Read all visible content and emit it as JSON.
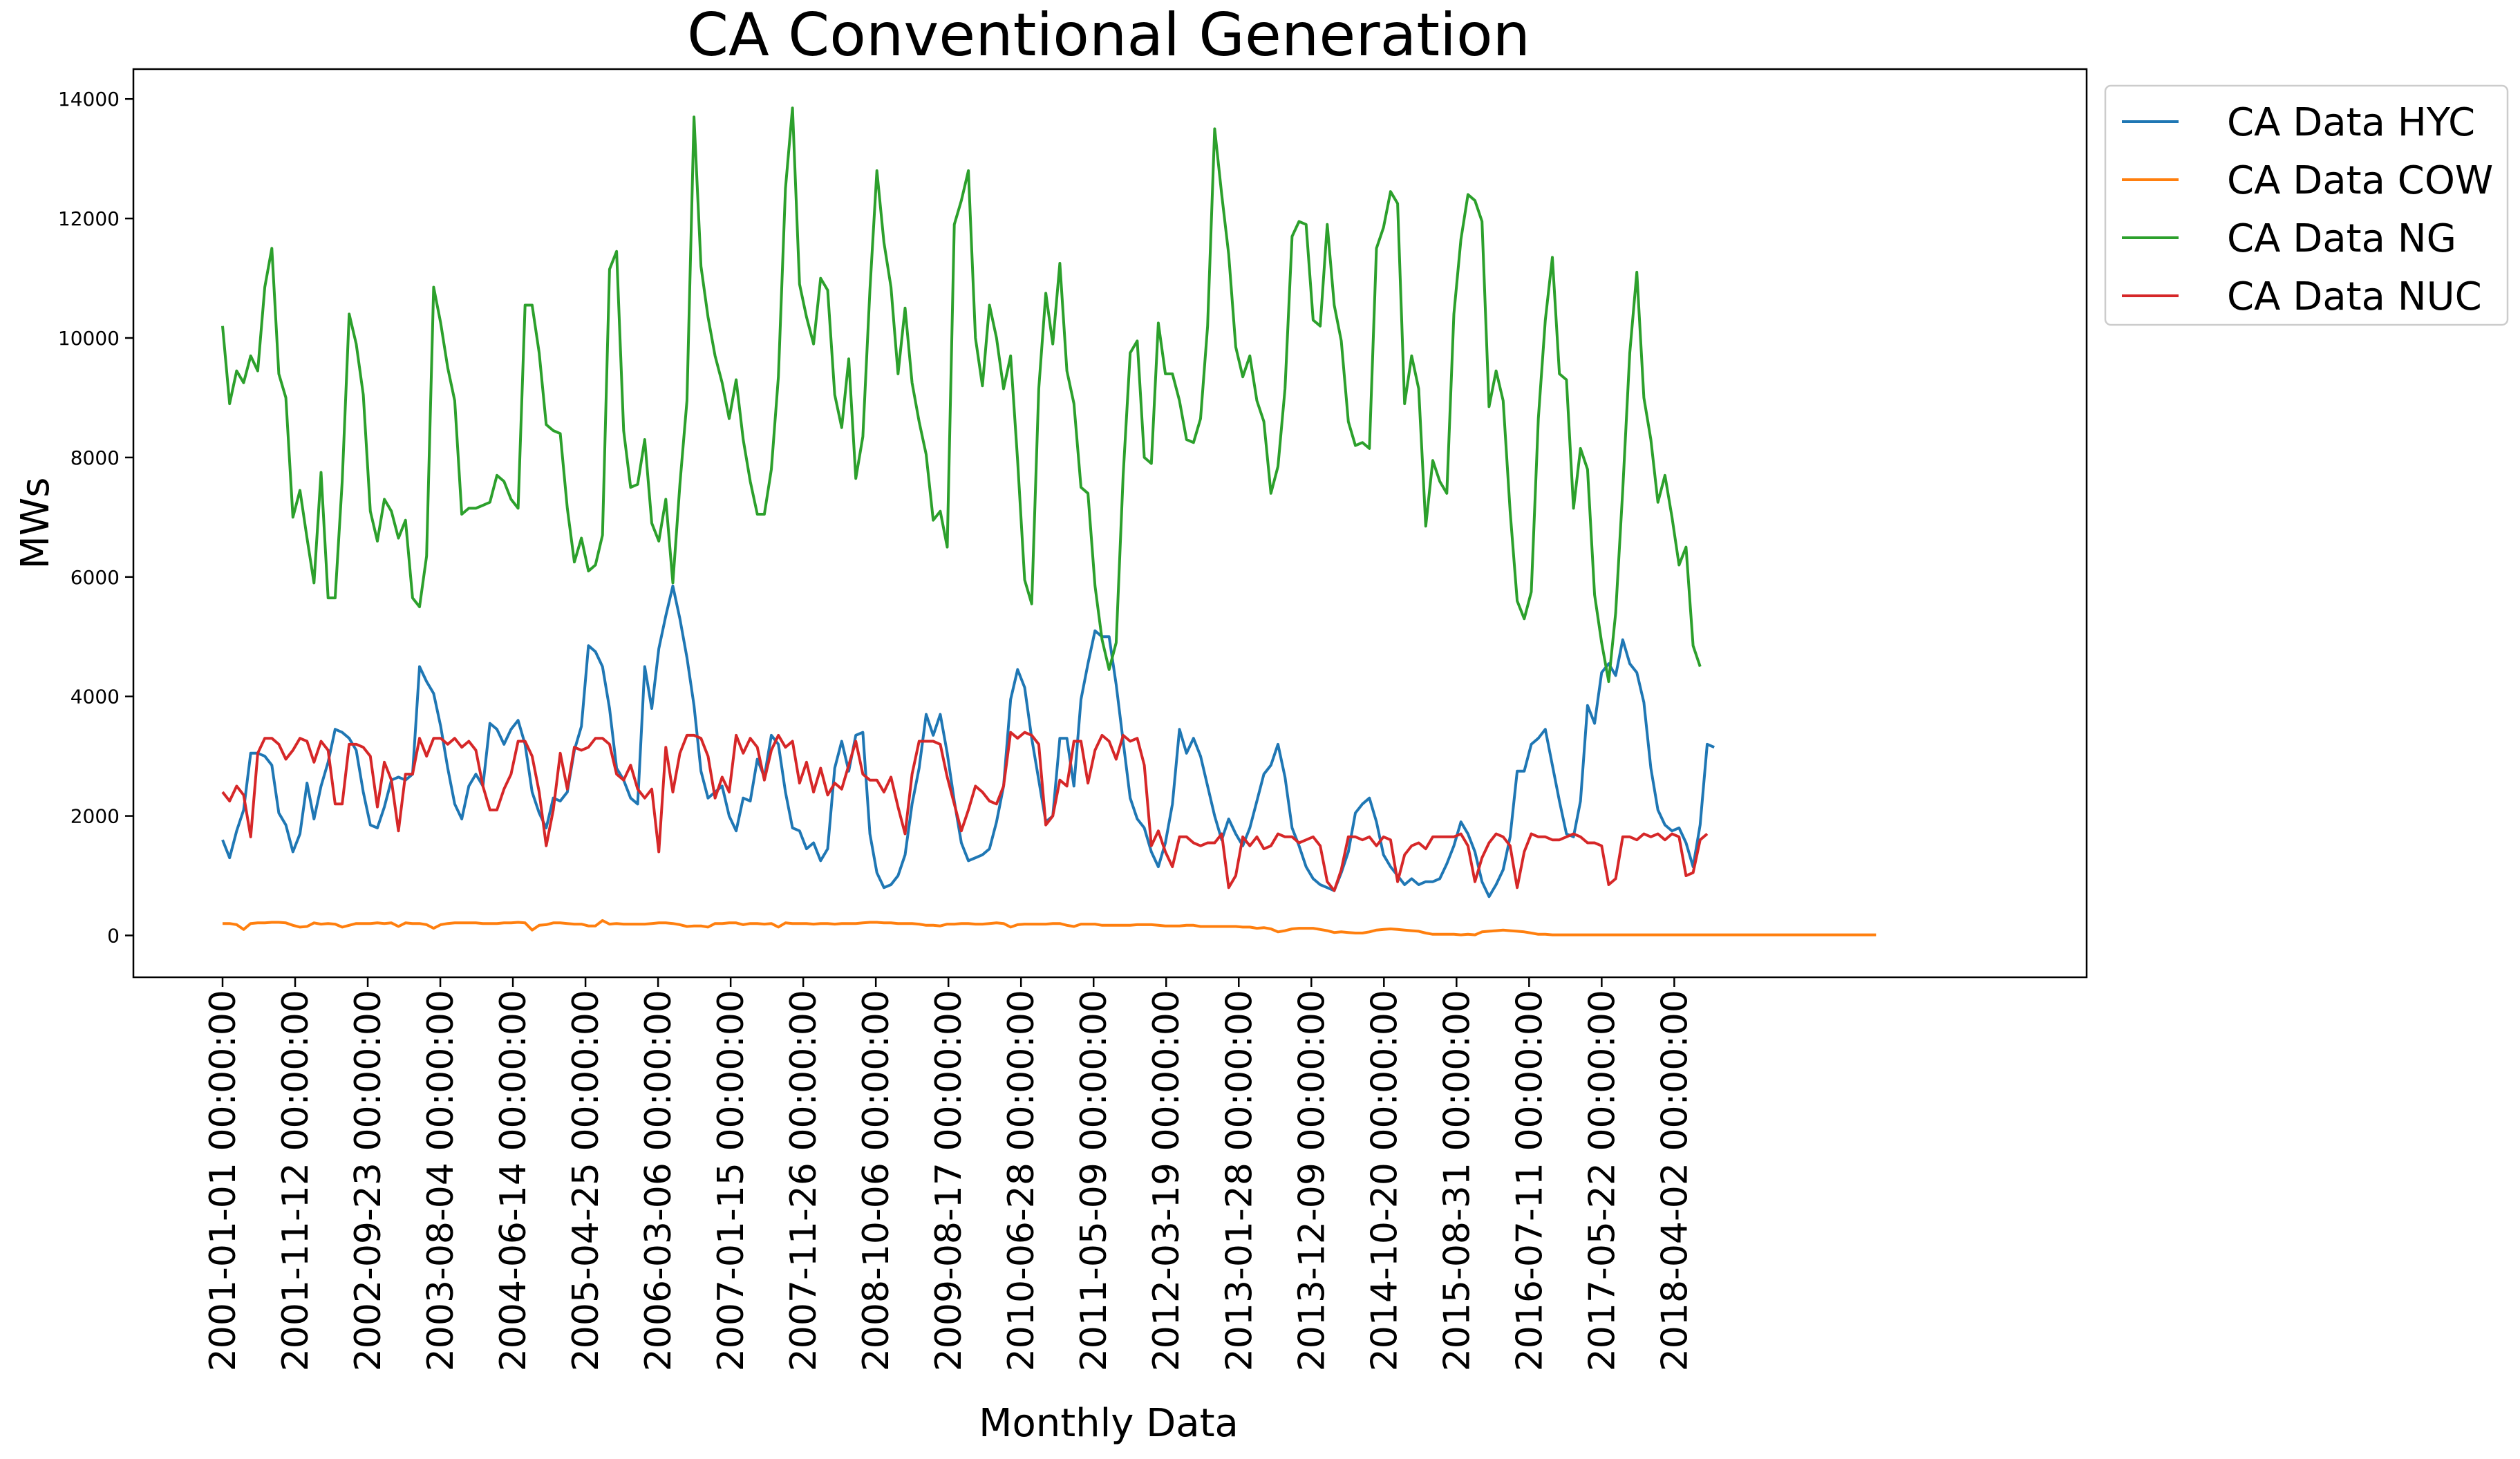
{
  "chart_data": {
    "type": "line",
    "title": "CA Conventional Generation",
    "xlabel": "Monthly Data",
    "ylabel": "MWs",
    "ylim": [
      -700,
      14500
    ],
    "yticks": [
      0,
      2000,
      4000,
      6000,
      8000,
      10000,
      12000,
      14000
    ],
    "x_start": "2001-01-01",
    "x_interval": "monthly",
    "x_tick_labels": [
      "2001-01-01 00:00:00",
      "2001-11-12 00:00:00",
      "2002-09-23 00:00:00",
      "2003-08-04 00:00:00",
      "2004-06-14 00:00:00",
      "2005-04-25 00:00:00",
      "2006-03-06 00:00:00",
      "2007-01-15 00:00:00",
      "2007-11-26 00:00:00",
      "2008-10-06 00:00:00",
      "2009-08-17 00:00:00",
      "2010-06-28 00:00:00",
      "2011-05-09 00:00:00",
      "2012-03-19 00:00:00",
      "2013-01-28 00:00:00",
      "2013-12-09 00:00:00",
      "2014-10-20 00:00:00",
      "2015-08-31 00:00:00",
      "2016-07-11 00:00:00",
      "2017-05-22 00:00:00",
      "2018-04-02 00:00:00"
    ],
    "legend_position": "outside-top-right",
    "grid": false,
    "series": [
      {
        "name": "CA Data HYC",
        "color": "#1f77b4",
        "values": [
          1600,
          1300,
          1750,
          2100,
          3050,
          3050,
          3000,
          2850,
          2050,
          1850,
          1400,
          1700,
          2550,
          1950,
          2500,
          2900,
          3450,
          3400,
          3300,
          3100,
          2400,
          1850,
          1800,
          2150,
          2600,
          2650,
          2600,
          2700,
          4500,
          4250,
          4050,
          3500,
          2800,
          2200,
          1950,
          2500,
          2700,
          2500,
          3550,
          3450,
          3200,
          3450,
          3600,
          3200,
          2400,
          2050,
          1800,
          2300,
          2250,
          2400,
          3100,
          3500,
          4850,
          4750,
          4500,
          3800,
          2800,
          2600,
          2300,
          2200,
          4500,
          3800,
          4800,
          5350,
          5850,
          5300,
          4650,
          3850,
          2750,
          2300,
          2400,
          2500,
          2000,
          1750,
          2300,
          2250,
          2950,
          2650,
          3350,
          3200,
          2400,
          1800,
          1750,
          1450,
          1550,
          1250,
          1450,
          2800,
          3250,
          2750,
          3350,
          3400,
          1700,
          1050,
          800,
          850,
          1000,
          1350,
          2200,
          2800,
          3700,
          3350,
          3700,
          3050,
          2250,
          1550,
          1250,
          1300,
          1350,
          1450,
          1900,
          2500,
          3950,
          4450,
          4150,
          3300,
          2600,
          1900,
          2000,
          3300,
          3300,
          2500,
          3950,
          4550,
          5100,
          5000,
          5000,
          4200,
          3250,
          2300,
          1950,
          1800,
          1400,
          1150,
          1550,
          2200,
          3450,
          3050,
          3300,
          3000,
          2500,
          2000,
          1600,
          1950,
          1700,
          1500,
          1800,
          2250,
          2700,
          2850,
          3200,
          2650,
          1800,
          1500,
          1150,
          950,
          850,
          800,
          750,
          1050,
          1400,
          2050,
          2200,
          2300,
          1900,
          1350,
          1150,
          1000,
          850,
          950,
          850,
          900,
          900,
          950,
          1200,
          1500,
          1900,
          1700,
          1400,
          900,
          650,
          850,
          1100,
          1650,
          2750,
          2750,
          3200,
          3300,
          3450,
          2850,
          2250,
          1700,
          1650,
          2250,
          3850,
          3550,
          4400,
          4550,
          4350,
          4950,
          4550,
          4400,
          3900,
          2800,
          2100,
          1850,
          1750,
          1800,
          1550,
          1150,
          1850,
          3200,
          3150
        ]
      },
      {
        "name": "CA Data COW",
        "color": "#ff7f0e",
        "values": [
          200,
          200,
          180,
          100,
          200,
          210,
          210,
          220,
          220,
          210,
          170,
          140,
          150,
          210,
          190,
          200,
          190,
          140,
          170,
          200,
          200,
          200,
          210,
          200,
          210,
          150,
          210,
          200,
          200,
          180,
          120,
          180,
          200,
          210,
          210,
          210,
          210,
          200,
          200,
          200,
          210,
          210,
          220,
          210,
          90,
          170,
          180,
          210,
          210,
          200,
          190,
          190,
          160,
          160,
          250,
          190,
          200,
          190,
          190,
          190,
          190,
          200,
          210,
          210,
          200,
          180,
          150,
          160,
          160,
          140,
          200,
          200,
          210,
          210,
          180,
          200,
          200,
          190,
          200,
          140,
          210,
          200,
          200,
          200,
          190,
          200,
          200,
          190,
          200,
          200,
          200,
          210,
          220,
          220,
          210,
          210,
          200,
          200,
          200,
          190,
          170,
          170,
          160,
          190,
          190,
          200,
          200,
          190,
          190,
          200,
          210,
          200,
          140,
          180,
          190,
          190,
          190,
          190,
          200,
          200,
          170,
          150,
          190,
          190,
          190,
          170,
          170,
          170,
          170,
          170,
          180,
          180,
          180,
          170,
          160,
          160,
          160,
          170,
          170,
          150,
          150,
          150,
          150,
          150,
          150,
          140,
          140,
          120,
          130,
          110,
          60,
          80,
          110,
          120,
          120,
          120,
          100,
          80,
          50,
          60,
          50,
          40,
          40,
          60,
          90,
          100,
          110,
          100,
          90,
          80,
          70,
          40,
          20,
          20,
          20,
          20,
          10,
          20,
          10,
          60,
          70,
          80,
          90,
          80,
          70,
          60,
          40,
          20,
          20,
          10,
          10,
          10,
          10,
          10,
          10,
          10,
          10,
          10,
          10,
          10,
          10,
          10,
          10,
          10,
          10,
          10,
          10,
          10,
          10,
          10,
          10,
          10,
          10,
          10,
          10,
          10,
          10,
          10,
          10,
          10,
          10,
          10,
          10,
          10,
          10,
          10,
          10,
          10,
          10,
          10,
          10,
          10,
          10,
          10,
          10,
          10
        ]
      },
      {
        "name": "CA Data NG",
        "color": "#2ca02c",
        "values": [
          10200,
          8900,
          9450,
          9250,
          9700,
          9450,
          10850,
          11500,
          9400,
          9000,
          7000,
          7450,
          6650,
          5900,
          7750,
          5650,
          5650,
          7600,
          10400,
          9900,
          9050,
          7100,
          6600,
          7300,
          7100,
          6650,
          6950,
          5650,
          5500,
          6350,
          10850,
          10250,
          9500,
          8950,
          7050,
          7150,
          7150,
          7200,
          7250,
          7700,
          7600,
          7300,
          7150,
          10550,
          10550,
          9750,
          8550,
          8450,
          8400,
          7150,
          6250,
          6650,
          6100,
          6200,
          6700,
          11150,
          11450,
          8450,
          7500,
          7550,
          8300,
          6900,
          6600,
          7300,
          5900,
          7550,
          8950,
          13700,
          11200,
          10350,
          9700,
          9250,
          8650,
          9300,
          8300,
          7600,
          7050,
          7050,
          7800,
          9350,
          12500,
          13850,
          10900,
          10350,
          9900,
          11000,
          10800,
          9050,
          8500,
          9650,
          7650,
          8350,
          10800,
          12800,
          11600,
          10850,
          9400,
          10500,
          9250,
          8600,
          8050,
          6950,
          7100,
          6500,
          11900,
          12300,
          12800,
          10000,
          9200,
          10550,
          10000,
          9150,
          9700,
          7950,
          5950,
          5550,
          9150,
          10750,
          9900,
          11250,
          9450,
          8900,
          7500,
          7400,
          5850,
          4950,
          4450,
          4900,
          7700,
          9750,
          9950,
          8000,
          7900,
          10250,
          9400,
          9400,
          8950,
          8300,
          8250,
          8650,
          10200,
          13500,
          12400,
          11400,
          9850,
          9350,
          9700,
          8950,
          8600,
          7400,
          7850,
          9150,
          11700,
          11950,
          11900,
          10300,
          10200,
          11900,
          10550,
          9950,
          8600,
          8200,
          8250,
          8150,
          11500,
          11850,
          12450,
          12250,
          8900,
          9700,
          9150,
          6850,
          7950,
          7600,
          7400,
          10400,
          11650,
          12400,
          12300,
          11950,
          8850,
          9450,
          8950,
          7100,
          5600,
          5300,
          5750,
          8650,
          10300,
          11350,
          9400,
          9300,
          7150,
          8150,
          7800,
          5700,
          4900,
          4250,
          5400,
          7450,
          9750,
          11100,
          9000,
          8300,
          7250,
          7700,
          7000,
          6200,
          6500,
          4850,
          4500
        ]
      },
      {
        "name": "CA Data NUC",
        "color": "#d62728",
        "values": [
          2400,
          2250,
          2500,
          2350,
          1650,
          3050,
          3300,
          3300,
          3200,
          2950,
          3100,
          3300,
          3250,
          2900,
          3250,
          3100,
          2200,
          2200,
          3200,
          3200,
          3150,
          3000,
          2150,
          2900,
          2600,
          1750,
          2700,
          2700,
          3300,
          3000,
          3300,
          3300,
          3200,
          3300,
          3150,
          3250,
          3100,
          2500,
          2100,
          2100,
          2450,
          2700,
          3250,
          3250,
          3000,
          2400,
          1500,
          2100,
          3050,
          2450,
          3150,
          3100,
          3150,
          3300,
          3300,
          3200,
          2700,
          2600,
          2850,
          2450,
          2300,
          2450,
          1400,
          3150,
          2400,
          3050,
          3350,
          3350,
          3300,
          3000,
          2300,
          2650,
          2400,
          3350,
          3050,
          3300,
          3150,
          2600,
          3100,
          3350,
          3150,
          3250,
          2550,
          2900,
          2400,
          2800,
          2350,
          2550,
          2450,
          2850,
          3250,
          2700,
          2600,
          2600,
          2400,
          2650,
          2150,
          1700,
          2700,
          3250,
          3250,
          3250,
          3200,
          2650,
          2200,
          1750,
          2100,
          2500,
          2400,
          2250,
          2200,
          2500,
          3400,
          3300,
          3400,
          3350,
          3200,
          1850,
          2000,
          2600,
          2500,
          3250,
          3250,
          2550,
          3100,
          3350,
          3250,
          2950,
          3350,
          3250,
          3300,
          2850,
          1500,
          1750,
          1400,
          1150,
          1650,
          1650,
          1550,
          1500,
          1550,
          1550,
          1700,
          800,
          1000,
          1650,
          1500,
          1650,
          1450,
          1500,
          1700,
          1650,
          1650,
          1550,
          1600,
          1650,
          1500,
          900,
          750,
          1100,
          1650,
          1650,
          1600,
          1650,
          1500,
          1650,
          1600,
          900,
          1350,
          1500,
          1550,
          1450,
          1650,
          1650,
          1650,
          1650,
          1700,
          1500,
          900,
          1300,
          1550,
          1700,
          1650,
          1500,
          800,
          1400,
          1700,
          1650,
          1650,
          1600,
          1600,
          1650,
          1700,
          1650,
          1550,
          1550,
          1500,
          850,
          950,
          1650,
          1650,
          1600,
          1700,
          1650,
          1700,
          1600,
          1700,
          1650,
          1000,
          1050,
          1600,
          1700
        ]
      }
    ]
  }
}
